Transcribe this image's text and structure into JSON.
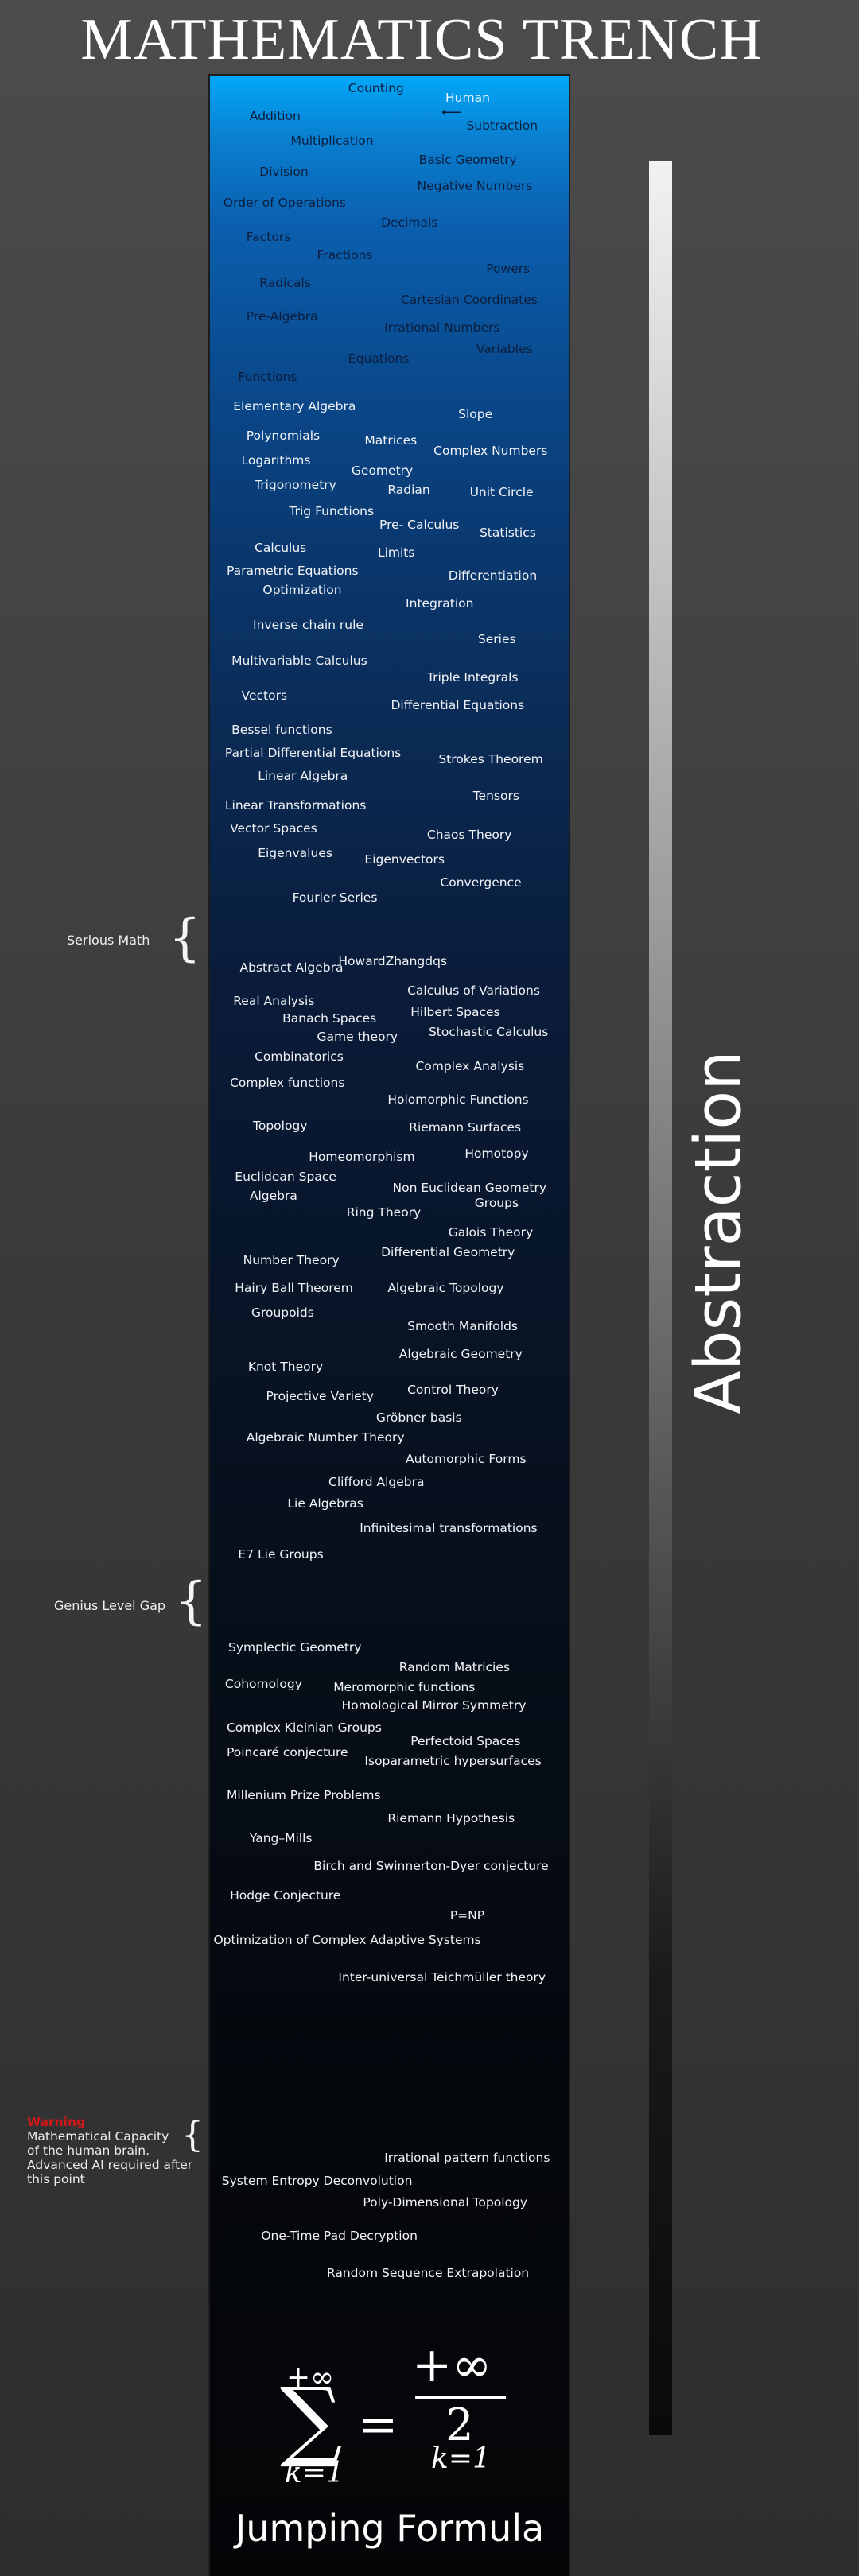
{
  "title": "MATHEMATICS TRENCH",
  "axis_label": "Abstraction",
  "human_label": "Human",
  "topics_dark": [
    "Counting",
    "Addition",
    "Subtraction",
    "Multiplication",
    "Basic Geometry",
    "Division",
    "Negative Numbers",
    "Order of Operations",
    "Decimals",
    "Factors",
    "Fractions",
    "Powers",
    "Radicals",
    "Cartesian Coordinates",
    "Pre-Algebra",
    "Irrational Numbers",
    "Variables",
    "Equations",
    "Functions"
  ],
  "topics": [
    "Elementary Algebra",
    "Slope",
    "Polynomials",
    "Matrices",
    "Complex Numbers",
    "Logarithms",
    "Geometry",
    "Trigonometry",
    "Radian",
    "Unit Circle",
    "Trig Functions",
    "Pre- Calculus",
    "Statistics",
    "Calculus",
    "Limits",
    "Parametric Equations",
    "Differentiation",
    "Optimization",
    "Integration",
    "Inverse chain rule",
    "Series",
    "Multivariable Calculus",
    "Triple Integrals",
    "Vectors",
    "Differential Equations",
    "Bessel functions",
    "Partial Differential Equations",
    "Strokes Theorem",
    "Linear Algebra",
    "Tensors",
    "Linear Transformations",
    "Vector Spaces",
    "Chaos Theory",
    "Eigenvalues",
    "Eigenvectors",
    "Convergence",
    "Fourier Series",
    "Abstract Algebra",
    "HowardZhangdqs",
    "Calculus of Variations",
    "Real Analysis",
    "Hilbert Spaces",
    "Banach Spaces",
    "Stochastic Calculus",
    "Game theory",
    "Combinatorics",
    "Complex Analysis",
    "Complex functions",
    "Holomorphic Functions",
    "Topology",
    "Riemann Surfaces",
    "Homeomorphism",
    "Homotopy",
    "Euclidean Space",
    "Non Euclidean Geometry",
    "Algebra",
    "Groups",
    "Ring Theory",
    "Galois Theory",
    "Differential Geometry",
    "Number Theory",
    "Hairy Ball Theorem",
    "Algebraic Topology",
    "Groupoids",
    "Smooth Manifolds",
    "Algebraic Geometry",
    "Knot Theory",
    "Control Theory",
    "Projective Variety",
    "Gröbner basis",
    "Algebraic Number Theory",
    "Automorphic Forms",
    "Clifford Algebra",
    "Lie Algebras",
    "Infinitesimal transformations",
    "E7 Lie Groups",
    "Symplectic Geometry",
    "Random Matricies",
    "Cohomology",
    "Meromorphic functions",
    "Homological Mirror Symmetry",
    "Complex Kleinian Groups",
    "Perfectoid Spaces",
    "Poincaré conjecture",
    "Isoparametric hypersurfaces",
    "Millenium Prize Problems",
    "Riemann Hypothesis",
    "Yang–Mills",
    "Birch and Swinnerton-Dyer conjecture",
    "Hodge Conjecture",
    "P=NP",
    "Optimization of Complex Adaptive Systems",
    "Inter-universal Teichmüller theory",
    "Irrational pattern functions",
    "System Entropy Deconvolution",
    "Poly-Dimensional Topology",
    "One-Time Pad Decryption",
    "Random Sequence Extrapolation"
  ],
  "side_labels": {
    "serious": "Serious Math",
    "genius": "Genius Level Gap",
    "warning_title": "Warning",
    "warning_lines": [
      "Mathematical Capacity",
      "of the human brain.",
      "Advanced AI required after",
      "this point"
    ]
  },
  "formula": {
    "upper": "+∞",
    "sigma": "∑",
    "lower": "k=1",
    "equals": "=",
    "numerator": "+∞",
    "denominator": "2",
    "denominator_sub": "k=1",
    "caption": "Jumping Formula"
  },
  "colors": {
    "warning": "#d01818",
    "trench_top": "#02a8f8",
    "trench_bottom": "#040507"
  }
}
